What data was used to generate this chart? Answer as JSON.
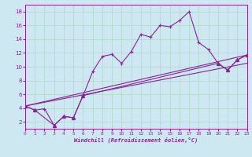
{
  "xlabel": "Windchill (Refroidissement éolien,°C)",
  "background_color": "#cde8f0",
  "grid_color": "#b0d8c8",
  "line_color": "#882299",
  "xlim": [
    0,
    23
  ],
  "ylim": [
    1,
    19
  ],
  "xticks": [
    0,
    1,
    2,
    3,
    4,
    5,
    6,
    7,
    8,
    9,
    10,
    11,
    12,
    13,
    14,
    15,
    16,
    17,
    18,
    19,
    20,
    21,
    22,
    23
  ],
  "yticks": [
    2,
    4,
    6,
    8,
    10,
    12,
    14,
    16,
    18
  ],
  "series_main": {
    "x": [
      0,
      1,
      2,
      3,
      4,
      5,
      6,
      7,
      8,
      9,
      10,
      11,
      12,
      13,
      14,
      15,
      16,
      17,
      18,
      19,
      20,
      21,
      22,
      23
    ],
    "y": [
      4.3,
      3.7,
      3.9,
      1.5,
      2.8,
      2.6,
      5.8,
      9.3,
      11.5,
      11.8,
      10.5,
      12.2,
      14.7,
      14.3,
      16.0,
      15.8,
      16.7,
      18.0,
      13.5,
      12.5,
      10.5,
      9.5,
      11.0,
      11.7
    ]
  },
  "series_zigzag": {
    "x": [
      0,
      1,
      3,
      4,
      5,
      6,
      20,
      21,
      22,
      23
    ],
    "y": [
      4.3,
      3.7,
      1.5,
      2.8,
      2.6,
      5.8,
      10.5,
      9.5,
      11.0,
      11.7
    ]
  },
  "series_line1": {
    "x": [
      0,
      23
    ],
    "y": [
      4.3,
      11.7
    ]
  },
  "series_line2": {
    "x": [
      0,
      23
    ],
    "y": [
      4.3,
      10.5
    ]
  }
}
